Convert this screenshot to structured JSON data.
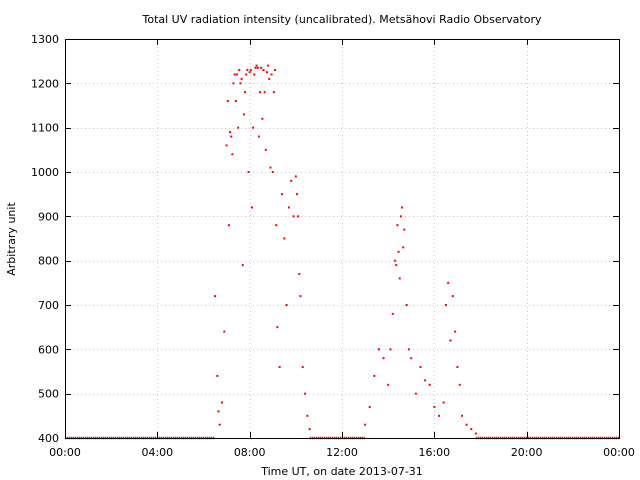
{
  "chart_data": {
    "type": "scatter",
    "title": "Total UV radiation intensity (uncalibrated). Metsähovi Radio Observatory",
    "xlabel": "Time UT, on date 2013-07-31",
    "ylabel": "Arbitrary unit",
    "xlim": [
      0,
      24
    ],
    "ylim": [
      400,
      1300
    ],
    "xticks": [
      {
        "value": 0,
        "label": "00:00"
      },
      {
        "value": 4,
        "label": "04:00"
      },
      {
        "value": 8,
        "label": "08:00"
      },
      {
        "value": 12,
        "label": "12:00"
      },
      {
        "value": 16,
        "label": "16:00"
      },
      {
        "value": 20,
        "label": "20:00"
      },
      {
        "value": 24,
        "label": "00:00"
      }
    ],
    "yticks": [
      400,
      500,
      600,
      700,
      800,
      900,
      1000,
      1100,
      1200,
      1300
    ],
    "grid": true,
    "marker_color": "#ff0000",
    "series": [
      {
        "name": "",
        "x": [
          6.5,
          6.6,
          6.65,
          6.7,
          6.8,
          6.9,
          7.0,
          7.05,
          7.1,
          7.15,
          7.2,
          7.25,
          7.3,
          7.35,
          7.4,
          7.45,
          7.5,
          7.55,
          7.6,
          7.65,
          7.7,
          7.75,
          7.8,
          7.85,
          7.9,
          7.95,
          8.0,
          8.05,
          8.1,
          8.15,
          8.2,
          8.25,
          8.3,
          8.35,
          8.4,
          8.45,
          8.5,
          8.55,
          8.6,
          8.65,
          8.7,
          8.75,
          8.8,
          8.85,
          8.9,
          8.95,
          9.0,
          9.05,
          9.1,
          9.15,
          9.2,
          9.3,
          9.4,
          9.5,
          9.6,
          9.7,
          9.8,
          9.9,
          10.0,
          10.05,
          10.1,
          10.15,
          10.2,
          10.3,
          10.4,
          10.5,
          10.6,
          13.0,
          13.2,
          13.4,
          13.6,
          13.8,
          14.0,
          14.1,
          14.2,
          14.3,
          14.35,
          14.4,
          14.45,
          14.5,
          14.55,
          14.6,
          14.65,
          14.7,
          14.8,
          14.9,
          15.0,
          15.2,
          15.4,
          15.6,
          15.8,
          16.0,
          16.2,
          16.4,
          16.5,
          16.6,
          16.7,
          16.8,
          16.9,
          17.0,
          17.1,
          17.2,
          17.4,
          17.6,
          17.8
        ],
        "y": [
          720,
          540,
          460,
          430,
          480,
          640,
          1060,
          1160,
          880,
          1090,
          1080,
          1040,
          1200,
          1220,
          1160,
          1220,
          1100,
          1230,
          1200,
          1210,
          790,
          1130,
          1180,
          1220,
          1230,
          1000,
          1225,
          1230,
          920,
          1100,
          1220,
          1235,
          1240,
          1235,
          1080,
          1180,
          1235,
          1120,
          1230,
          1180,
          1050,
          1225,
          1240,
          1210,
          1010,
          1220,
          1000,
          1180,
          1230,
          880,
          650,
          560,
          950,
          850,
          700,
          920,
          980,
          900,
          990,
          950,
          900,
          770,
          720,
          560,
          500,
          450,
          420,
          430,
          470,
          540,
          600,
          580,
          520,
          600,
          680,
          800,
          790,
          880,
          820,
          760,
          900,
          920,
          830,
          870,
          700,
          600,
          580,
          500,
          560,
          530,
          520,
          470,
          450,
          480,
          700,
          750,
          620,
          720,
          640,
          560,
          520,
          450,
          430,
          420,
          410
        ],
        "baseline": {
          "value": 400,
          "x_ranges": [
            [
              0,
              6.5
            ],
            [
              10.6,
              13.0
            ],
            [
              17.8,
              24
            ]
          ]
        }
      }
    ]
  }
}
